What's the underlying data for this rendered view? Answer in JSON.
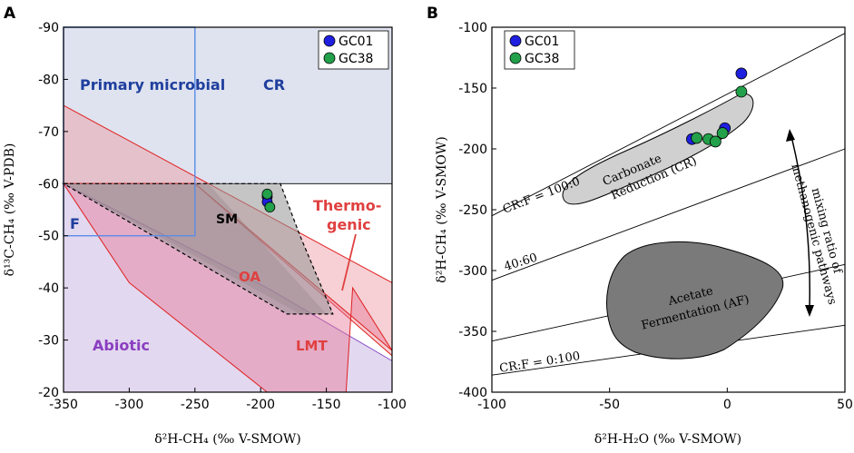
{
  "chart_data": [
    {
      "type": "scatter",
      "panel_label": "A",
      "xlabel": "δ²H-CH₄ (‰ V-SMOW)",
      "ylabel": "δ¹³C-CH₄ (‰ V-PDB)",
      "xlim": [
        -350,
        -100
      ],
      "ylim": [
        -90,
        -20
      ],
      "y_inverted": true,
      "x_ticks": [
        -350,
        -300,
        -250,
        -200,
        -150,
        -100
      ],
      "y_ticks": [
        -90,
        -80,
        -70,
        -60,
        -50,
        -40,
        -30,
        -20
      ],
      "legend": [
        {
          "name": "GC01",
          "color": "#1f1fe0"
        },
        {
          "name": "GC38",
          "color": "#22a04a"
        }
      ],
      "region_labels": {
        "primary_microbial": "Primary microbial",
        "cr": "CR",
        "f": "F",
        "sm": "SM",
        "oa": "OA",
        "thermogenic_1": "Thermo-",
        "thermogenic_2": "genic",
        "abiotic": "Abiotic",
        "lmt": "LMT"
      },
      "regions": {
        "CR": [
          [
            -350,
            -90
          ],
          [
            -100,
            -90
          ],
          [
            -100,
            -60
          ],
          [
            -350,
            -60
          ]
        ],
        "F": [
          [
            -350,
            -90
          ],
          [
            -250,
            -90
          ],
          [
            -250,
            -50
          ],
          [
            -350,
            -50
          ]
        ],
        "Abiotic": [
          [
            -350,
            -60
          ],
          [
            -195,
            -40
          ],
          [
            -100,
            -26
          ],
          [
            -100,
            -20
          ],
          [
            -350,
            -20
          ]
        ],
        "Thermogenic": [
          [
            -350,
            -75
          ],
          [
            -100,
            -41
          ],
          [
            -100,
            -27
          ],
          [
            -250,
            -60
          ],
          [
            -350,
            -60
          ]
        ],
        "LMT": [
          [
            -350,
            -60
          ],
          [
            -300,
            -41
          ],
          [
            -195,
            -20
          ],
          [
            -135,
            -20
          ],
          [
            -130,
            -40
          ],
          [
            -100,
            -28
          ],
          [
            -250,
            -60
          ]
        ],
        "OA": [
          [
            -350,
            -60
          ],
          [
            -240,
            -60
          ],
          [
            -150,
            -35
          ],
          [
            -170,
            -35
          ]
        ],
        "SM": [
          [
            -350,
            -60
          ],
          [
            -185,
            -60
          ],
          [
            -170,
            -50
          ],
          [
            -145,
            -35
          ],
          [
            -180,
            -35
          ]
        ]
      },
      "series": [
        {
          "name": "GC01",
          "x": [
            -195,
            -195
          ],
          "y": [
            -57.5,
            -56.5
          ]
        },
        {
          "name": "GC38",
          "x": [
            -195,
            -193
          ],
          "y": [
            -58,
            -55.5
          ]
        }
      ]
    },
    {
      "type": "scatter",
      "panel_label": "B",
      "xlabel": "δ²H-H₂O (‰ V-SMOW)",
      "ylabel": "δ²H-CH₄ (‰ V-SMOW)",
      "xlim": [
        -100,
        50
      ],
      "ylim": [
        -400,
        -100
      ],
      "x_ticks": [
        -100,
        -50,
        0,
        50
      ],
      "y_ticks": [
        -100,
        -150,
        -200,
        -250,
        -300,
        -350,
        -400
      ],
      "legend": [
        {
          "name": "GC01",
          "color": "#1f1fe0"
        },
        {
          "name": "GC38",
          "color": "#22a04a"
        }
      ],
      "lines": [
        {
          "label": "CR:F = 100:0",
          "x": [
            -100,
            50
          ],
          "y": [
            -255,
            -105
          ]
        },
        {
          "label": "40:60",
          "x": [
            -100,
            50
          ],
          "y": [
            -308,
            -200
          ]
        },
        {
          "label": "",
          "x": [
            -100,
            50
          ],
          "y": [
            -358,
            -295
          ]
        },
        {
          "label": "CR:F = 0:100",
          "x": [
            -100,
            50
          ],
          "y": [
            -386,
            -345
          ]
        }
      ],
      "region_labels": {
        "cr_1": "Carbonate",
        "cr_2": "Reduction (CR)",
        "af_1": "Acetate",
        "af_2": "Fermentation (AF)",
        "arrow_1": "mixing ratio of",
        "arrow_2": "methanogenic pathways"
      },
      "series": [
        {
          "name": "GC01",
          "x": [
            6,
            -1,
            -15
          ],
          "y": [
            -138,
            -183,
            -192
          ]
        },
        {
          "name": "GC38",
          "x": [
            6,
            -13,
            -8,
            -5,
            -2
          ],
          "y": [
            -153,
            -191,
            -192,
            -194,
            -187
          ]
        }
      ]
    }
  ]
}
